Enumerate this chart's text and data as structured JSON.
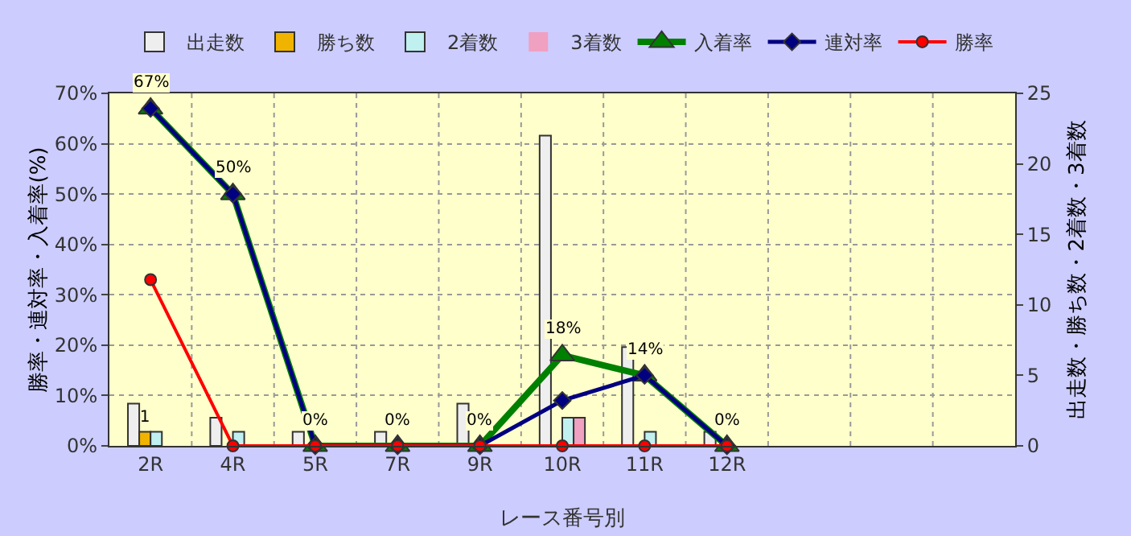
{
  "chart_data": {
    "type": "bar",
    "xlabel": "レース番号別",
    "ylabel": "勝率・連対率・入着率(%)",
    "y2label": "出走数・勝ち数・2着数・3着数",
    "categories": [
      "2R",
      "4R",
      "5R",
      "7R",
      "9R",
      "10R",
      "11R",
      "12R",
      null,
      null,
      null
    ],
    "series": [
      {
        "name": "出走数",
        "axis": "y2",
        "color": "#eeeeee",
        "values": [
          3,
          2,
          1,
          1,
          3,
          22,
          7,
          1,
          null,
          null,
          null
        ]
      },
      {
        "name": "勝ち数",
        "axis": "y2",
        "color": "#f0b400",
        "values": [
          1,
          0,
          0,
          0,
          0,
          0,
          0,
          0,
          null,
          null,
          null
        ],
        "value_labels": [
          "1",
          null,
          null,
          null,
          null,
          null,
          null,
          null,
          null,
          null,
          null
        ]
      },
      {
        "name": "2着数",
        "axis": "y2",
        "color": "#c0f0f0",
        "values": [
          1,
          1,
          0,
          0,
          0,
          2,
          1,
          0,
          null,
          null,
          null
        ]
      },
      {
        "name": "3着数",
        "axis": "y2",
        "color": "#f0a0c0",
        "values": [
          0,
          0,
          0,
          0,
          0,
          2,
          0,
          0,
          null,
          null,
          null
        ]
      },
      {
        "name": "入着率",
        "type": "line",
        "marker": "triangle",
        "color": "#008000",
        "values": [
          67,
          50,
          0,
          0,
          0,
          18,
          14,
          0,
          null,
          null,
          null
        ],
        "value_labels": [
          "67%",
          "50%",
          "0%",
          "0%",
          "0%",
          "18%",
          "14%",
          "0%",
          null,
          null,
          null
        ]
      },
      {
        "name": "連対率",
        "type": "line",
        "marker": "diamond",
        "color": "#000080",
        "values": [
          67,
          50,
          0,
          0,
          0,
          9,
          14,
          0,
          null,
          null,
          null
        ]
      },
      {
        "name": "勝率",
        "type": "line",
        "marker": "circle",
        "color": "#ff0000",
        "values": [
          33,
          0,
          0,
          0,
          0,
          0,
          0,
          0,
          null,
          null,
          null
        ]
      }
    ],
    "ylim": [
      0,
      70
    ],
    "yticks": [
      {
        "value": 0,
        "label": "0%"
      },
      {
        "value": 10,
        "label": "10%"
      },
      {
        "value": 20,
        "label": "20%"
      },
      {
        "value": 30,
        "label": "30%"
      },
      {
        "value": 40,
        "label": "40%"
      },
      {
        "value": 50,
        "label": "50%"
      },
      {
        "value": 60,
        "label": "60%"
      },
      {
        "value": 70,
        "label": "70%"
      }
    ],
    "y2lim": [
      0,
      25
    ],
    "y2ticks": [
      0,
      5,
      10,
      15,
      20,
      25
    ],
    "grid": true,
    "legend": "top"
  }
}
